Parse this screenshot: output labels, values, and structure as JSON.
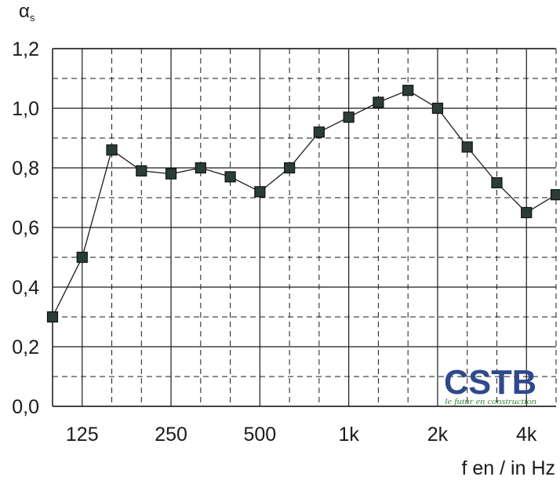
{
  "chart_data": {
    "type": "line",
    "ylabel": "α",
    "ylabel_sub": "s",
    "xlabel": "f en / in Hz",
    "ylim": [
      0,
      1.2
    ],
    "yticks": [
      "0,0",
      "0,2",
      "0,4",
      "0,6",
      "0,8",
      "1,0",
      "1,2"
    ],
    "ytick_values": [
      0,
      0.2,
      0.4,
      0.6,
      0.8,
      1.0,
      1.2
    ],
    "x_scale": "log (third-octave bands)",
    "x": [
      100,
      125,
      160,
      200,
      250,
      315,
      400,
      500,
      630,
      800,
      1000,
      1250,
      1600,
      2000,
      2500,
      3150,
      4000,
      5000
    ],
    "xticks": [
      {
        "label": "125",
        "value": 125
      },
      {
        "label": "250",
        "value": 250
      },
      {
        "label": "500",
        "value": 500
      },
      {
        "label": "1k",
        "value": 1000
      },
      {
        "label": "2k",
        "value": 2000
      },
      {
        "label": "4k",
        "value": 4000
      }
    ],
    "series": [
      {
        "values": [
          0.3,
          0.5,
          0.86,
          0.79,
          0.78,
          0.8,
          0.77,
          0.72,
          0.8,
          0.92,
          0.97,
          1.02,
          1.06,
          1.0,
          0.87,
          0.75,
          0.65,
          0.71
        ]
      }
    ],
    "grid": true,
    "marker": "square",
    "colors": {
      "line": "#1a1a1a",
      "marker": "#2a3d36",
      "grid": "#1a1a1a"
    }
  },
  "logo": {
    "name": "CSTB",
    "tagline": "le futur en construction",
    "color": "#2e4a8c",
    "tagline_color": "#3a8a3a"
  }
}
